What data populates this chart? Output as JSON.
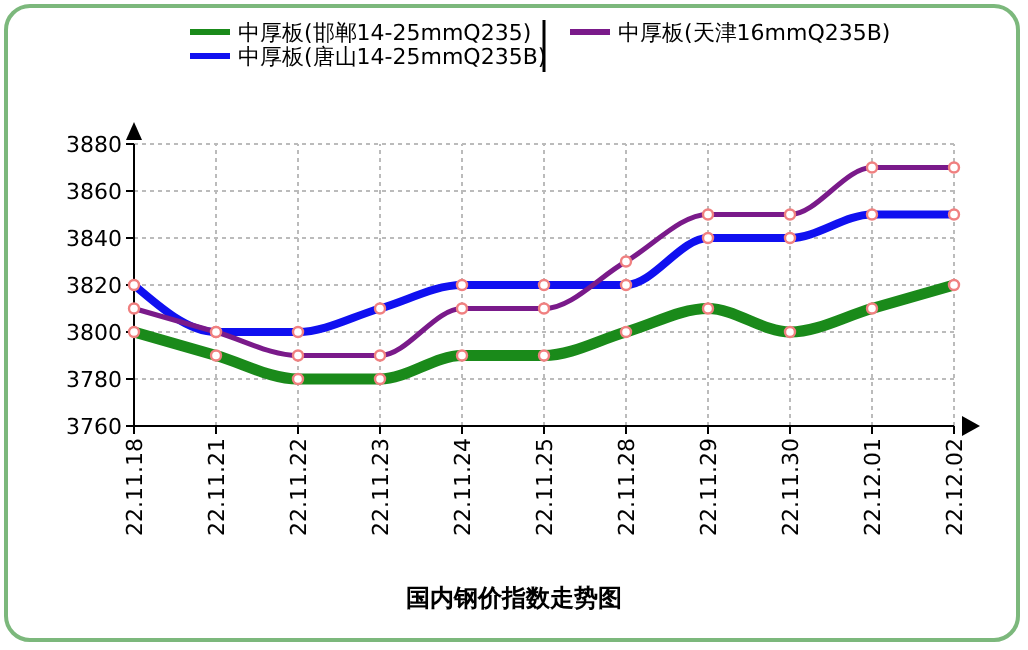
{
  "chart_data": {
    "type": "line",
    "title": "国内钢价指数走势图",
    "categories": [
      "22.11.18",
      "22.11.21",
      "22.11.22",
      "22.11.23",
      "22.11.24",
      "22.11.25",
      "22.11.28",
      "22.11.29",
      "22.11.30",
      "22.12.01",
      "22.12.02"
    ],
    "series": [
      {
        "name": "中厚板(邯郸14-25mmQ235)",
        "color": "#1a8a1a",
        "values": [
          3800,
          3790,
          3780,
          3780,
          3790,
          3790,
          3800,
          3810,
          3800,
          3810,
          3820
        ]
      },
      {
        "name": "中厚板(唐山14-25mmQ235B)",
        "color": "#1010f0",
        "values": [
          3820,
          3800,
          3800,
          3810,
          3820,
          3820,
          3820,
          3840,
          3840,
          3850,
          3850
        ]
      },
      {
        "name": "中厚板(天津16mmQ235B)",
        "color": "#7a1a8a",
        "values": [
          3810,
          3800,
          3790,
          3790,
          3810,
          3810,
          3830,
          3850,
          3850,
          3870,
          3870
        ]
      }
    ],
    "ylim": [
      3760,
      3880
    ],
    "yticks": [
      3760,
      3780,
      3800,
      3820,
      3840,
      3860,
      3880
    ],
    "grid": true,
    "legend": "top",
    "marker": "circle",
    "line_style": "solid"
  }
}
